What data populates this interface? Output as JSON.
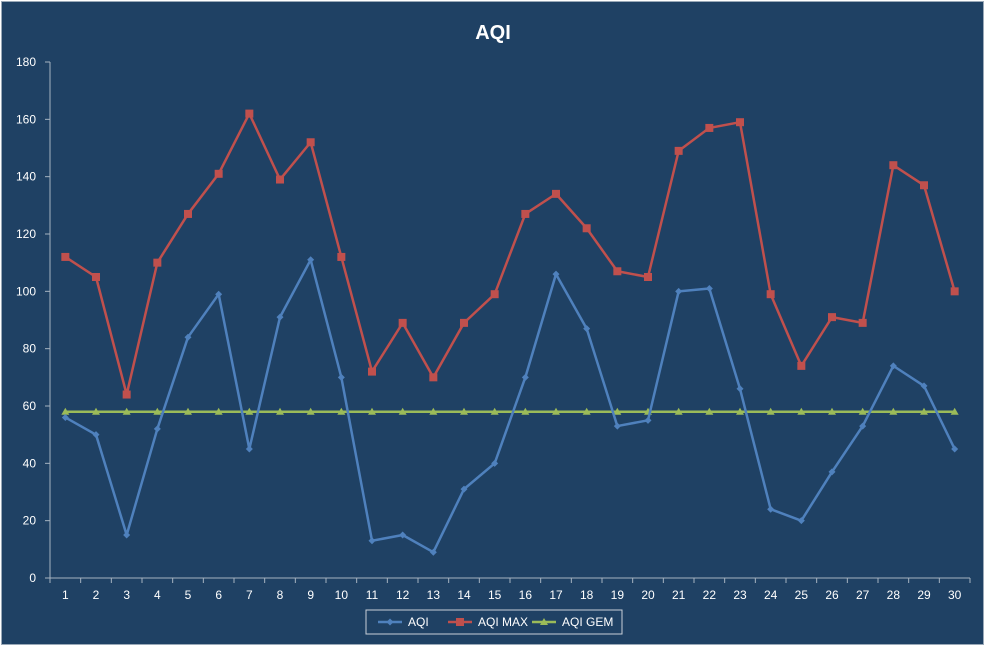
{
  "chart_data": {
    "type": "line",
    "title": "AQI",
    "xlabel": "",
    "ylabel": "",
    "ylim": [
      0,
      180
    ],
    "y_ticks": [
      0,
      20,
      40,
      60,
      80,
      100,
      120,
      140,
      160,
      180
    ],
    "categories": [
      "1",
      "2",
      "3",
      "4",
      "5",
      "6",
      "7",
      "8",
      "9",
      "10",
      "11",
      "12",
      "13",
      "14",
      "15",
      "16",
      "17",
      "18",
      "19",
      "20",
      "21",
      "22",
      "23",
      "24",
      "25",
      "26",
      "27",
      "28",
      "29",
      "30"
    ],
    "grid": false,
    "legend": "bottom",
    "series": [
      {
        "name": "AQI",
        "color": "#4f81bd",
        "marker": "diamond",
        "values": [
          56,
          50,
          15,
          52,
          84,
          99,
          45,
          91,
          111,
          70,
          13,
          15,
          9,
          31,
          40,
          70,
          106,
          87,
          53,
          55,
          100,
          101,
          66,
          24,
          20,
          37,
          53,
          74,
          67,
          45
        ]
      },
      {
        "name": "AQI MAX",
        "color": "#c0504d",
        "marker": "square",
        "values": [
          112,
          105,
          64,
          110,
          127,
          141,
          162,
          139,
          152,
          112,
          72,
          89,
          70,
          89,
          99,
          127,
          134,
          122,
          107,
          105,
          149,
          157,
          159,
          99,
          74,
          91,
          89,
          144,
          137,
          100
        ]
      },
      {
        "name": "AQI GEM",
        "color": "#9bbb59",
        "marker": "triangle",
        "values": [
          58,
          58,
          58,
          58,
          58,
          58,
          58,
          58,
          58,
          58,
          58,
          58,
          58,
          58,
          58,
          58,
          58,
          58,
          58,
          58,
          58,
          58,
          58,
          58,
          58,
          58,
          58,
          58,
          58,
          58
        ]
      }
    ]
  }
}
